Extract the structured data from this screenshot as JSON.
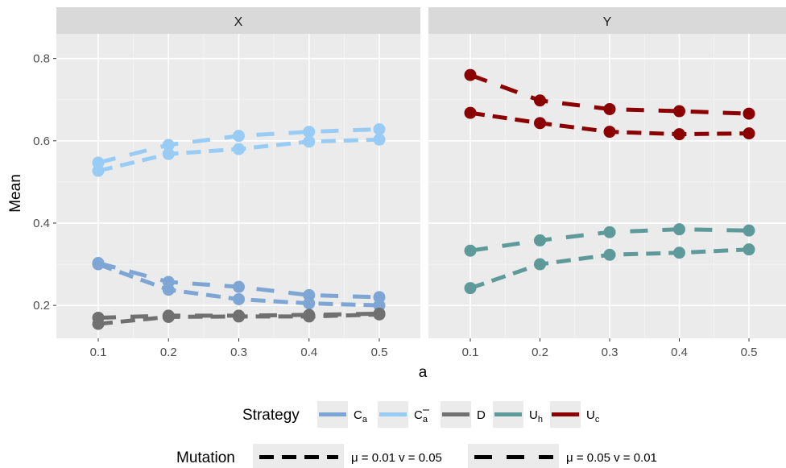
{
  "chart_data": {
    "type": "line",
    "xlabel": "a",
    "ylabel": "Mean",
    "x": [
      0.1,
      0.2,
      0.3,
      0.4,
      0.5
    ],
    "x_tick_labels": [
      "0.1",
      "0.2",
      "0.3",
      "0.4",
      "0.5"
    ],
    "ylim": [
      0.12,
      0.86
    ],
    "y_ticks": [
      0.2,
      0.4,
      0.6,
      0.8
    ],
    "y_tick_labels": [
      "0.2",
      "0.4",
      "0.6",
      "0.8"
    ],
    "grid": true,
    "legend_position": "bottom",
    "facets": [
      "X",
      "Y"
    ],
    "strategy_legend": {
      "title": "Strategy",
      "entries": [
        {
          "key": "Ca",
          "base": "C",
          "sub": "a",
          "overline": false,
          "color": "#7ea6d5"
        },
        {
          "key": "Cabar",
          "base": "C",
          "sub": "a",
          "overline": true,
          "color": "#99ccf5"
        },
        {
          "key": "D",
          "base": "D",
          "sub": "",
          "overline": false,
          "color": "#707070"
        },
        {
          "key": "Uh",
          "base": "U",
          "sub": "h",
          "overline": false,
          "color": "#5f9a9a"
        },
        {
          "key": "Uc",
          "base": "U",
          "sub": "c",
          "overline": false,
          "color": "#8b0000"
        }
      ]
    },
    "mutation_legend": {
      "title": "Mutation",
      "entries": [
        {
          "key": "m1",
          "label": "μ = 0.01  v = 0.05",
          "dash": "18,10"
        },
        {
          "key": "m2",
          "label": "μ = 0.05  v = 0.01",
          "dash": "22,18"
        }
      ]
    },
    "series": [
      {
        "facet": "X",
        "strategy": "Ca",
        "mutation": "m1",
        "values": [
          0.3,
          0.238,
          0.215,
          0.205,
          0.2
        ]
      },
      {
        "facet": "X",
        "strategy": "Ca",
        "mutation": "m2",
        "values": [
          0.303,
          0.257,
          0.245,
          0.225,
          0.22
        ]
      },
      {
        "facet": "X",
        "strategy": "Cabar",
        "mutation": "m1",
        "values": [
          0.527,
          0.568,
          0.58,
          0.598,
          0.603
        ]
      },
      {
        "facet": "X",
        "strategy": "Cabar",
        "mutation": "m2",
        "values": [
          0.547,
          0.59,
          0.612,
          0.622,
          0.628
        ]
      },
      {
        "facet": "X",
        "strategy": "D",
        "mutation": "m1",
        "values": [
          0.155,
          0.172,
          0.173,
          0.173,
          0.178
        ]
      },
      {
        "facet": "X",
        "strategy": "D",
        "mutation": "m2",
        "values": [
          0.17,
          0.175,
          0.175,
          0.177,
          0.18
        ]
      },
      {
        "facet": "Y",
        "strategy": "Uh",
        "mutation": "m1",
        "values": [
          0.242,
          0.3,
          0.323,
          0.328,
          0.336
        ]
      },
      {
        "facet": "Y",
        "strategy": "Uh",
        "mutation": "m2",
        "values": [
          0.333,
          0.358,
          0.378,
          0.385,
          0.382
        ]
      },
      {
        "facet": "Y",
        "strategy": "Uc",
        "mutation": "m1",
        "values": [
          0.668,
          0.643,
          0.622,
          0.616,
          0.618
        ]
      },
      {
        "facet": "Y",
        "strategy": "Uc",
        "mutation": "m2",
        "values": [
          0.76,
          0.698,
          0.677,
          0.672,
          0.666
        ]
      }
    ]
  }
}
